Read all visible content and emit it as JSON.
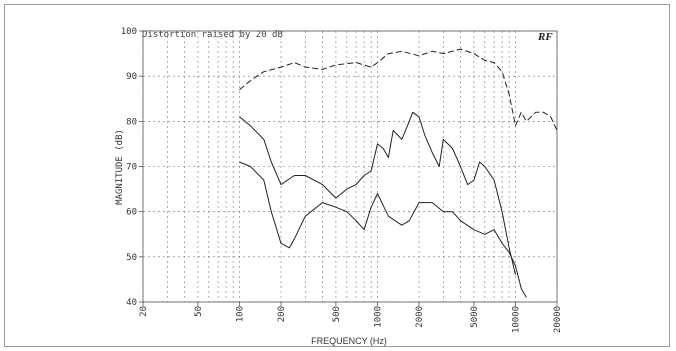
{
  "chart_data": {
    "type": "line",
    "title": "Distortion raised by 20 dB",
    "xlabel": "FREQUENCY (Hz)",
    "ylabel": "MAGNITUDE (dB)",
    "logo": "RF",
    "xscale": "log",
    "xlim": [
      20,
      20000
    ],
    "ylim": [
      40,
      100
    ],
    "grid": true,
    "x_ticks": [
      20,
      50,
      100,
      200,
      500,
      1000,
      2000,
      5000,
      10000,
      20000
    ],
    "x_tick_labels": [
      "20",
      "50",
      "100",
      "200",
      "500",
      "1000",
      "2000",
      "5000",
      "10000",
      "20000"
    ],
    "y_ticks": [
      40,
      50,
      60,
      70,
      80,
      90,
      100
    ],
    "y_tick_labels": [
      "40",
      "50",
      "60",
      "70",
      "80",
      "90",
      "100"
    ],
    "series": [
      {
        "name": "",
        "style": "dashed",
        "x": [
          100,
          120,
          150,
          200,
          250,
          300,
          400,
          500,
          700,
          900,
          1000,
          1200,
          1500,
          2000,
          2500,
          3000,
          4000,
          5000,
          6000,
          7000,
          8000,
          9000,
          10000,
          11000,
          12000,
          14000,
          16000,
          18000,
          20000
        ],
        "y": [
          87,
          89,
          91,
          92,
          93,
          92,
          91.5,
          92.5,
          93,
          92,
          93,
          95,
          95.5,
          94.5,
          95.5,
          95,
          96,
          95,
          93.5,
          93,
          91,
          86,
          79,
          82,
          80,
          82,
          82,
          81,
          78
        ]
      },
      {
        "name": "",
        "style": "solid",
        "x": [
          100,
          120,
          150,
          170,
          200,
          250,
          300,
          400,
          500,
          600,
          700,
          800,
          900,
          1000,
          1100,
          1200,
          1300,
          1500,
          1700,
          1800,
          2000,
          2200,
          2500,
          2800,
          3000,
          3500,
          4000,
          4500,
          5000,
          5500,
          6000,
          7000,
          8000,
          9000,
          10000
        ],
        "y": [
          81,
          79,
          76,
          71,
          66,
          68,
          68,
          66,
          63,
          65,
          66,
          68,
          69,
          75,
          74,
          72,
          78,
          76,
          80,
          82,
          81,
          77,
          73,
          70,
          76,
          74,
          70,
          66,
          67,
          71,
          70,
          67,
          60,
          52,
          46
        ]
      },
      {
        "name": "",
        "style": "solid",
        "x": [
          100,
          120,
          150,
          170,
          200,
          230,
          250,
          300,
          400,
          500,
          600,
          700,
          800,
          900,
          1000,
          1200,
          1500,
          1700,
          2000,
          2500,
          3000,
          3500,
          4000,
          5000,
          6000,
          7000,
          8000,
          9000,
          10000,
          11000,
          12000
        ],
        "y": [
          71,
          70,
          67,
          60,
          53,
          52,
          54,
          59,
          62,
          61,
          60,
          58,
          56,
          61,
          64,
          59,
          57,
          58,
          62,
          62,
          60,
          60,
          58,
          56,
          55,
          56,
          53,
          51,
          48,
          43,
          41
        ]
      }
    ]
  }
}
